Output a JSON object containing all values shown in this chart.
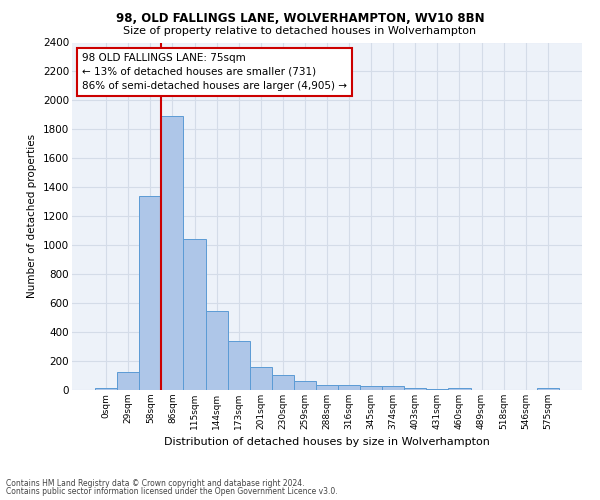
{
  "title1": "98, OLD FALLINGS LANE, WOLVERHAMPTON, WV10 8BN",
  "title2": "Size of property relative to detached houses in Wolverhampton",
  "xlabel": "Distribution of detached houses by size in Wolverhampton",
  "ylabel": "Number of detached properties",
  "footer1": "Contains HM Land Registry data © Crown copyright and database right 2024.",
  "footer2": "Contains public sector information licensed under the Open Government Licence v3.0.",
  "annotation_line1": "98 OLD FALLINGS LANE: 75sqm",
  "annotation_line2": "← 13% of detached houses are smaller (731)",
  "annotation_line3": "86% of semi-detached houses are larger (4,905) →",
  "bar_color": "#aec6e8",
  "bar_edge_color": "#5b9bd5",
  "vline_color": "#cc0000",
  "annotation_box_color": "#cc0000",
  "grid_color": "#d4dce8",
  "bg_color": "#edf2f9",
  "categories": [
    "0sqm",
    "29sqm",
    "58sqm",
    "86sqm",
    "115sqm",
    "144sqm",
    "173sqm",
    "201sqm",
    "230sqm",
    "259sqm",
    "288sqm",
    "316sqm",
    "345sqm",
    "374sqm",
    "403sqm",
    "431sqm",
    "460sqm",
    "489sqm",
    "518sqm",
    "546sqm",
    "575sqm"
  ],
  "values": [
    15,
    125,
    1340,
    1890,
    1045,
    545,
    335,
    160,
    105,
    60,
    35,
    35,
    25,
    25,
    15,
    5,
    15,
    2,
    2,
    2,
    15
  ],
  "ylim": [
    0,
    2400
  ],
  "yticks": [
    0,
    200,
    400,
    600,
    800,
    1000,
    1200,
    1400,
    1600,
    1800,
    2000,
    2200,
    2400
  ]
}
